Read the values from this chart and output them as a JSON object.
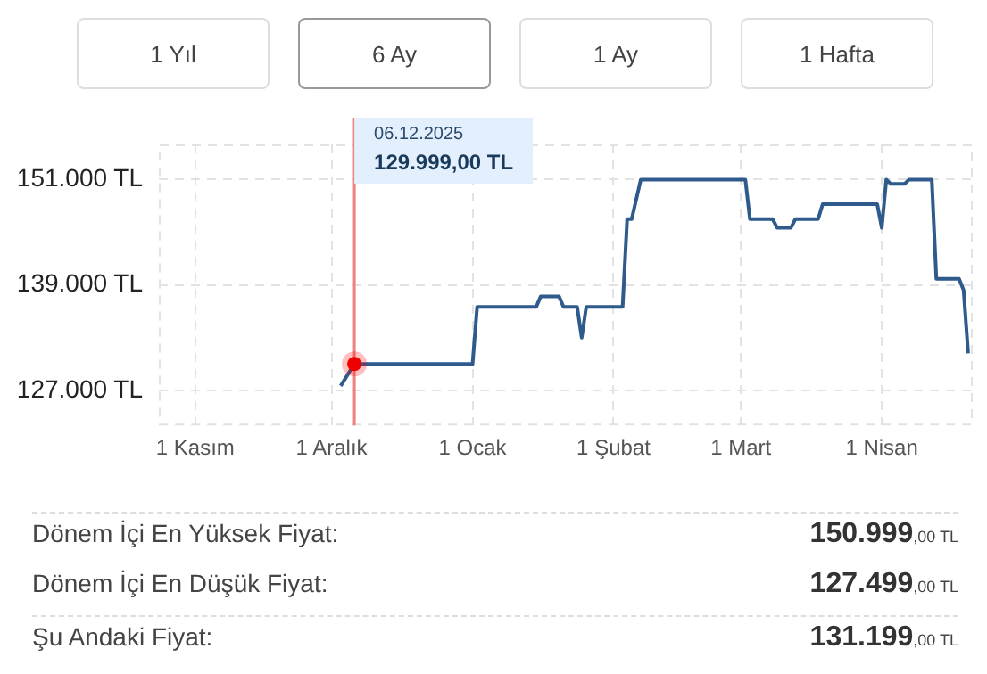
{
  "chart_data": {
    "type": "line",
    "x": [
      "2025-12-03",
      "2025-12-06",
      "2026-01-01",
      "2026-01-02",
      "2026-01-15",
      "2026-01-16",
      "2026-01-20",
      "2026-01-21",
      "2026-01-24",
      "2026-01-25",
      "2026-01-26",
      "2026-02-03",
      "2026-02-04",
      "2026-02-05",
      "2026-02-07",
      "2026-03-02",
      "2026-03-03",
      "2026-03-08",
      "2026-03-09",
      "2026-03-12",
      "2026-03-13",
      "2026-03-18",
      "2026-03-19",
      "2026-03-31",
      "2026-04-01",
      "2026-04-02",
      "2026-04-03",
      "2026-04-06",
      "2026-04-07",
      "2026-04-12",
      "2026-04-13",
      "2026-04-18",
      "2026-04-19",
      "2026-04-20"
    ],
    "series": [
      {
        "color": "#2e5a8c",
        "values": [
          127499,
          129999,
          129999,
          136500,
          136500,
          137700,
          137700,
          136500,
          136500,
          133000,
          136500,
          136500,
          146500,
          146500,
          150999,
          150999,
          146500,
          146500,
          145500,
          145500,
          146500,
          146500,
          148200,
          148200,
          145500,
          151000,
          150500,
          150500,
          150999,
          150999,
          139700,
          139700,
          138400,
          131199
        ]
      }
    ],
    "xlim": [
      "2025-10-24",
      "2026-04-21"
    ],
    "xticks": [
      {
        "value": "2025-11-01",
        "label": "1 Kasım"
      },
      {
        "value": "2025-12-01",
        "label": "1 Aralık"
      },
      {
        "value": "2026-01-01",
        "label": "1 Ocak"
      },
      {
        "value": "2026-02-01",
        "label": "1 Şubat"
      },
      {
        "value": "2026-03-01",
        "label": "1 Mart"
      },
      {
        "value": "2026-04-01",
        "label": "1 Nisan"
      }
    ],
    "ylim": [
      123000,
      155000
    ],
    "yticks": [
      {
        "value": 127000,
        "label": "127.000 TL"
      },
      {
        "value": 139000,
        "label": "139.000 TL"
      },
      {
        "value": 151000,
        "label": "151.000 TL"
      }
    ],
    "grid": true,
    "marker": "none",
    "line_style": "solid",
    "legend": false,
    "ref_lines": [
      {
        "axis": "x",
        "value": "2025-12-06",
        "color": "#f08080",
        "label": "06.12.2025\n129.999,00 TL"
      }
    ],
    "annotations": [
      "1 Yıl",
      "6 Ay",
      "1 Ay",
      "1 Hafta",
      "Dönem İçi En Yüksek Fiyat:",
      "150.999,00 TL",
      "Dönem İçi En Düşük Fiyat:",
      "127.499,00 TL",
      "Şu Andaki Fiyat:",
      "131.199,00 TL"
    ]
  }
}
